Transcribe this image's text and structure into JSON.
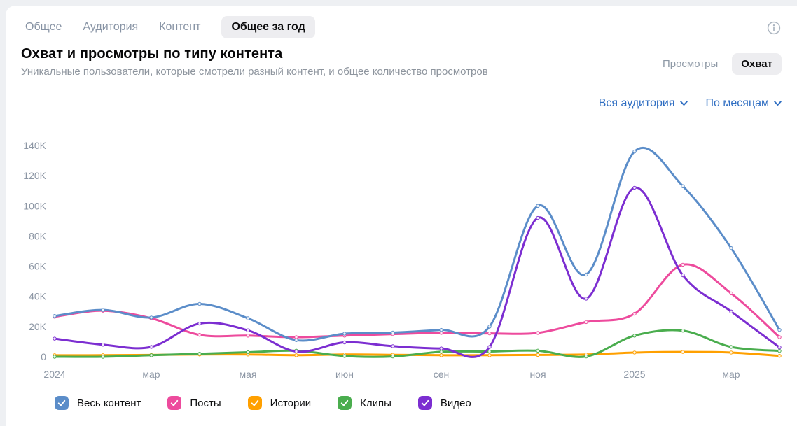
{
  "tabs": {
    "items": [
      {
        "label": "Общее",
        "active": false
      },
      {
        "label": "Аудитория",
        "active": false
      },
      {
        "label": "Контент",
        "active": false
      },
      {
        "label": "Общее за год",
        "active": true
      }
    ]
  },
  "header": {
    "title": "Охват и просмотры по типу контента",
    "subtitle": "Уникальные пользователи, которые смотрели разный контент, и общее количество просмотров",
    "info_icon": "info-icon"
  },
  "toggle": {
    "options": [
      {
        "label": "Просмотры",
        "active": false
      },
      {
        "label": "Охват",
        "active": true
      }
    ]
  },
  "filters": {
    "audience_label": "Вся аудитория",
    "period_label": "По месяцам",
    "chevron_icon": "chevron-down-icon",
    "accent_color": "#2f6ec2"
  },
  "chart_data": {
    "type": "line",
    "title": "Охват и просмотры по типу контента",
    "metric": "Охват",
    "x_unit": "месяцы (янв 2024 — апр 2025)",
    "n_points": 16,
    "xtick_labels": [
      "2024",
      "мар",
      "мая",
      "июн",
      "сен",
      "ноя",
      "2025",
      "мар"
    ],
    "xtick_point_indices": [
      0,
      2,
      4,
      6,
      8,
      10,
      12,
      14
    ],
    "ytick_labels": [
      "0",
      "20K",
      "40K",
      "60K",
      "80K",
      "100K",
      "120K",
      "140K"
    ],
    "ytick_values_k": [
      0,
      20,
      40,
      60,
      80,
      100,
      120,
      140
    ],
    "ylim_k": [
      0,
      140
    ],
    "values_unit": "thousands",
    "grid": "axis-lines-only",
    "legend_position": "bottom",
    "series": [
      {
        "name": "Весь контент",
        "color": "#5b8dc9",
        "values_k": [
          27,
          31,
          26,
          35,
          25.5,
          11,
          15.3,
          16,
          17.8,
          20,
          100,
          54.5,
          136,
          113,
          72,
          17.8
        ]
      },
      {
        "name": "Посты",
        "color": "#ed4b9d",
        "values_k": [
          26.5,
          30.5,
          25.5,
          14.5,
          14,
          13,
          14,
          15,
          15.8,
          15.5,
          15.8,
          23,
          28.5,
          61,
          42,
          13
        ]
      },
      {
        "name": "Истории",
        "color": "#ffa000",
        "values_k": [
          1,
          1,
          1.2,
          1.5,
          1.5,
          1,
          1.5,
          1.3,
          1,
          1,
          1.2,
          1.5,
          2.8,
          3.2,
          2.8,
          0.6
        ]
      },
      {
        "name": "Клипы",
        "color": "#4aad4e",
        "values_k": [
          0,
          0,
          1,
          2,
          3,
          4,
          0.5,
          0.2,
          3.3,
          3.5,
          4,
          0.2,
          14,
          17.3,
          6.5,
          3.9
        ]
      },
      {
        "name": "Видео",
        "color": "#7c2ed1",
        "values_k": [
          12,
          8,
          6.5,
          22,
          17.5,
          3.5,
          9.5,
          7,
          5.5,
          6.5,
          92,
          38.5,
          112,
          54,
          30,
          6.2
        ]
      }
    ],
    "draw_order": [
      2,
      3,
      1,
      4,
      0
    ],
    "axis_color": "#e6e9ed",
    "tick_label_color": "#8d97a5"
  },
  "legend": [
    {
      "label": "Весь контент",
      "color": "#5b8dc9",
      "checked": true
    },
    {
      "label": "Посты",
      "color": "#ed4b9d",
      "checked": true
    },
    {
      "label": "Истории",
      "color": "#ffa000",
      "checked": true
    },
    {
      "label": "Клипы",
      "color": "#4aad4e",
      "checked": true
    },
    {
      "label": "Видео",
      "color": "#7c2ed1",
      "checked": true
    }
  ]
}
